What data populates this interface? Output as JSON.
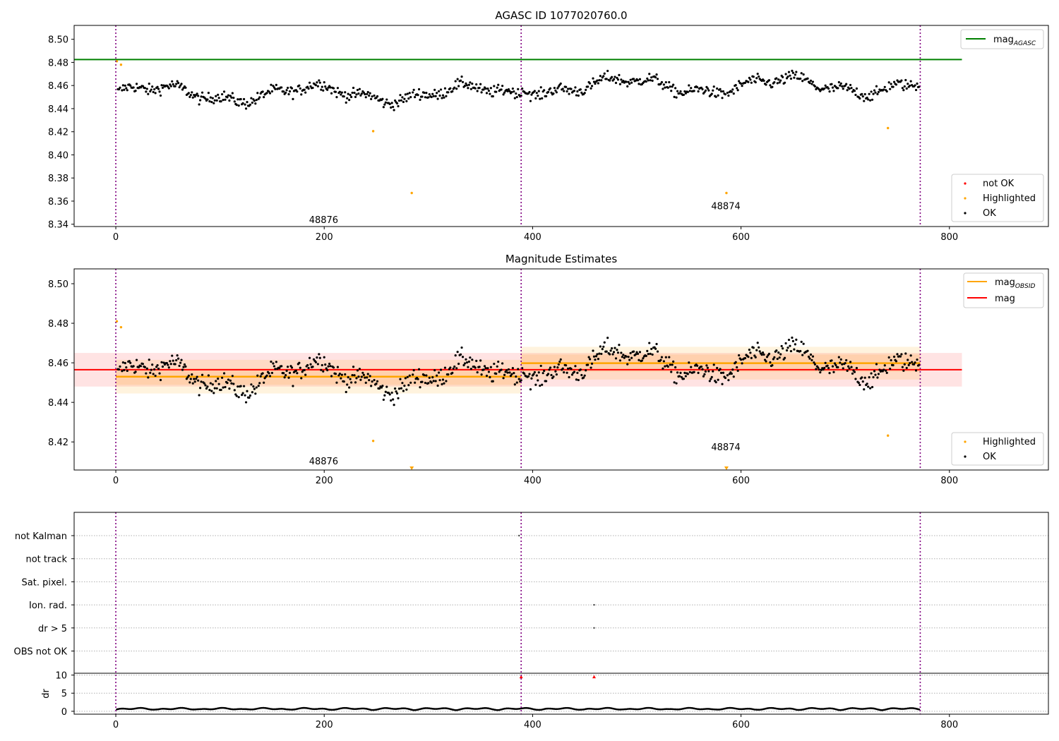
{
  "chart_data": [
    {
      "type": "scatter",
      "title": "AGASC ID 1077020760.0",
      "xlim": [
        -40,
        895
      ],
      "ylim": [
        8.338,
        8.512
      ],
      "xticks": [
        0,
        200,
        400,
        600,
        800
      ],
      "yticks": [
        8.34,
        8.36,
        8.38,
        8.4,
        8.42,
        8.44,
        8.46,
        8.48,
        8.5
      ],
      "ytick_labels": [
        "8.34",
        "8.36",
        "8.38",
        "8.40",
        "8.42",
        "8.44",
        "8.46",
        "8.48",
        "8.50"
      ],
      "obs_boundaries": [
        0,
        389,
        772
      ],
      "obs_labels": [
        {
          "text": "48876",
          "x": 194,
          "y": 8.344
        },
        {
          "text": "48874",
          "x": 580,
          "y": 8.356
        }
      ],
      "lines": [
        {
          "name": "mag_AGASC",
          "label_main": "mag",
          "label_sub": "AGASC",
          "color": "#008000",
          "x": [
            -40,
            812
          ],
          "y": 8.4825
        }
      ],
      "segments": [
        {
          "x0": 0,
          "x1": 389,
          "mean": 8.453,
          "std": 0.004
        },
        {
          "x0": 389,
          "x1": 772,
          "mean": 8.4598,
          "std": 0.004
        }
      ],
      "highlighted": [
        {
          "x": 1,
          "y": 8.481
        },
        {
          "x": 5,
          "y": 8.478
        },
        {
          "x": 247,
          "y": 8.4205
        },
        {
          "x": 284,
          "y": 8.367
        },
        {
          "x": 586,
          "y": 8.367
        },
        {
          "x": 741,
          "y": 8.4232
        }
      ],
      "not_ok": [],
      "legend_main": [
        {
          "label_main": "mag",
          "label_sub": "AGASC",
          "color": "#008000"
        }
      ],
      "legend_points": [
        {
          "label": "not OK",
          "color": "#ff0000"
        },
        {
          "label": "Highlighted",
          "color": "#ffa500"
        },
        {
          "label": "OK",
          "color": "#000000"
        }
      ]
    },
    {
      "type": "scatter",
      "title": "Magnitude Estimates",
      "xlim": [
        -40,
        895
      ],
      "ylim": [
        8.4058,
        8.5075
      ],
      "xticks": [
        0,
        200,
        400,
        600,
        800
      ],
      "yticks": [
        8.42,
        8.44,
        8.46,
        8.48,
        8.5
      ],
      "ytick_labels": [
        "8.42",
        "8.44",
        "8.46",
        "8.48",
        "8.50"
      ],
      "obs_boundaries": [
        0,
        389,
        772
      ],
      "obs_labels": [
        {
          "text": "48876",
          "x": 194,
          "y": 8.4104
        },
        {
          "text": "48874",
          "x": 580,
          "y": 8.4175
        }
      ],
      "mag_band": {
        "x": [
          -40,
          812
        ],
        "y": 8.4565,
        "band": [
          8.448,
          8.465
        ],
        "color": "#ff0000"
      },
      "obsid_segments": [
        {
          "x0": 0,
          "x1": 389,
          "mean": 8.453,
          "band_outer": [
            8.4445,
            8.4615
          ],
          "band_inner": [
            8.4489,
            8.4571
          ]
        },
        {
          "x0": 389,
          "x1": 772,
          "mean": 8.4598,
          "band_outer": [
            8.4515,
            8.4681
          ],
          "band_inner": [
            8.4554,
            8.4642
          ]
        }
      ],
      "highlighted": [
        {
          "x": 1,
          "y": 8.481
        },
        {
          "x": 5,
          "y": 8.478
        },
        {
          "x": 247,
          "y": 8.4205
        },
        {
          "x": 741,
          "y": 8.4232
        }
      ],
      "off_axis_markers": [
        {
          "x": 284
        },
        {
          "x": 586
        }
      ],
      "legend_main": [
        {
          "label_main": "mag",
          "label_sub": "OBSID",
          "color": "#ffa500"
        },
        {
          "label_main": "mag",
          "label_sub": "",
          "color": "#ff0000"
        }
      ],
      "legend_points": [
        {
          "label": "Highlighted",
          "color": "#ffa500"
        },
        {
          "label": "OK",
          "color": "#000000"
        }
      ]
    },
    {
      "type": "scatter",
      "title": "",
      "xlim": [
        -40,
        895
      ],
      "xticks": [
        0,
        200,
        400,
        600,
        800
      ],
      "obs_boundaries": [
        0,
        389,
        772
      ],
      "flags": [
        "not Kalman",
        "not track",
        "Sat. pixel.",
        "Ion. rad.",
        "dr > 5",
        "OBS not OK"
      ],
      "flag_points": [
        {
          "flag": "not Kalman",
          "x": 387
        },
        {
          "flag": "Ion. rad.",
          "x": 459
        },
        {
          "flag": "dr > 5",
          "x": 459
        }
      ],
      "dr": {
        "ylabel": "dr",
        "ylim": [
          -0.8,
          10.5
        ],
        "yticks": [
          0,
          5,
          10
        ],
        "ytick_labels": [
          "0",
          "5",
          "10"
        ],
        "high_points": [
          {
            "x": 389,
            "y": 9.5
          },
          {
            "x": 459,
            "y": 9.5
          }
        ]
      }
    }
  ],
  "colors": {
    "ok": "#000000",
    "highlighted": "#ffa500",
    "not_ok": "#ff0000",
    "obs_boundary": "#800080",
    "grid": "#b0b0b0"
  }
}
